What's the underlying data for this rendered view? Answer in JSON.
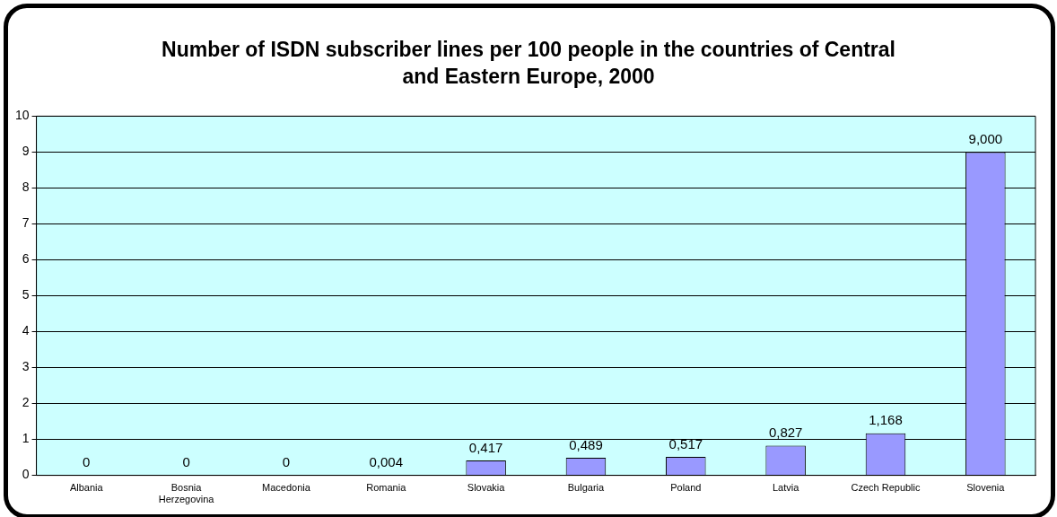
{
  "chart_data": {
    "type": "bar",
    "title": "Number of ISDN subscriber lines per 100 people in the countries of Central and Eastern Europe, 2000",
    "categories": [
      "Albania",
      "Bosnia Herzegovina",
      "Macedonia",
      "Romania",
      "Slovakia",
      "Bulgaria",
      "Poland",
      "Latvia",
      "Czech Republic",
      "Slovenia"
    ],
    "values": [
      0,
      0,
      0,
      0.004,
      0.417,
      0.489,
      0.517,
      0.827,
      1.168,
      9.0
    ],
    "value_labels": [
      "0",
      "0",
      "0",
      "0,004",
      "0,417",
      "0,489",
      "0,517",
      "0,827",
      "1,168",
      "9,000"
    ],
    "color": "#9999ff",
    "ylim": [
      0,
      10
    ],
    "yticks": [
      0,
      1,
      2,
      3,
      4,
      5,
      6,
      7,
      8,
      9,
      10
    ],
    "grid": "y",
    "legend": false
  }
}
